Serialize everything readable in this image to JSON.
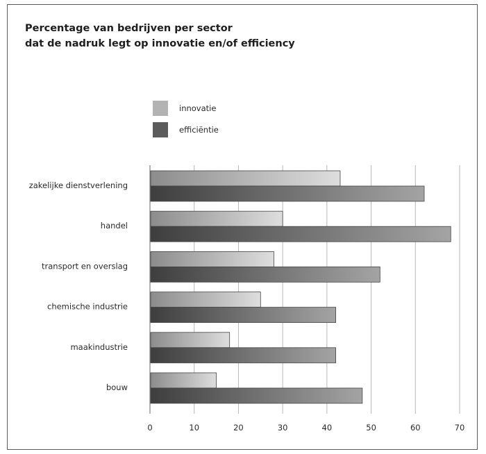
{
  "chart_data": {
    "type": "bar",
    "orientation": "horizontal",
    "title_lines": [
      "Percentage van bedrijven per sector",
      "dat de nadruk legt op innovatie en/of efficiency"
    ],
    "categories": [
      "zakelijke dienstverlening",
      "handel",
      "transport en overslag",
      "chemische industrie",
      "maakindustrie",
      "bouw"
    ],
    "series": [
      {
        "name": "innovatie",
        "values": [
          43,
          30,
          28,
          25,
          18,
          15
        ],
        "color": "#b3b3b3"
      },
      {
        "name": "efficiëntie",
        "values": [
          62,
          68,
          52,
          42,
          42,
          48
        ],
        "color": "#5c5c5c"
      }
    ],
    "xlim": [
      0,
      70
    ],
    "xticks": [
      0,
      10,
      20,
      30,
      40,
      50,
      60,
      70
    ],
    "grid": true,
    "legend_position": "top-left"
  }
}
